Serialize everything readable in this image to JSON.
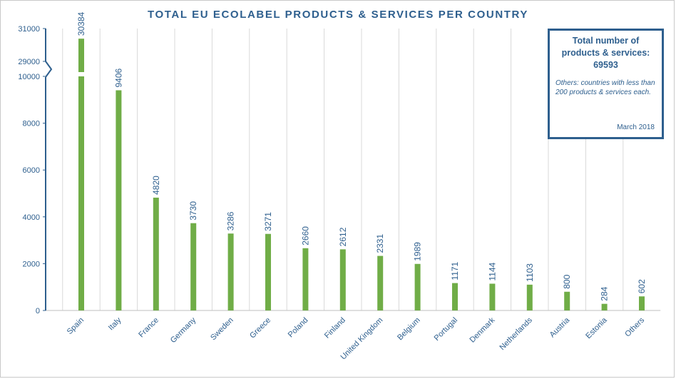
{
  "title": "TOTAL EU ECOLABEL PRODUCTS & SERVICES PER COUNTRY",
  "info_box": {
    "heading_line1": "Total number of",
    "heading_line2": "products & services:",
    "total": "69593",
    "note": "Others: countries with less than 200 products & services each.",
    "date": "March 2018"
  },
  "colors": {
    "bar": "#70ad47",
    "text": "#2e5f8e",
    "grid": "#d9d9d9"
  },
  "chart_data": {
    "type": "bar",
    "title": "TOTAL EU ECOLABEL PRODUCTS & SERVICES PER COUNTRY",
    "xlabel": "",
    "ylabel": "",
    "categories": [
      "Spain",
      "Italy",
      "France",
      "Germany",
      "Sweden",
      "Greece",
      "Poland",
      "Finland",
      "United Kingdom",
      "Belgium",
      "Portugal",
      "Denmark",
      "Netherlands",
      "Austria",
      "Estonia",
      "Others"
    ],
    "values": [
      30384,
      9406,
      4820,
      3730,
      3286,
      3271,
      2660,
      2612,
      2331,
      1989,
      1171,
      1144,
      1103,
      800,
      284,
      602
    ],
    "y_ticks": [
      "0",
      "2000",
      "4000",
      "6000",
      "8000",
      "10000",
      "29000",
      "31000"
    ],
    "ylim": [
      0,
      31000
    ],
    "y_axis_break": [
      10000,
      29000
    ],
    "grid": "vertical category separators"
  }
}
